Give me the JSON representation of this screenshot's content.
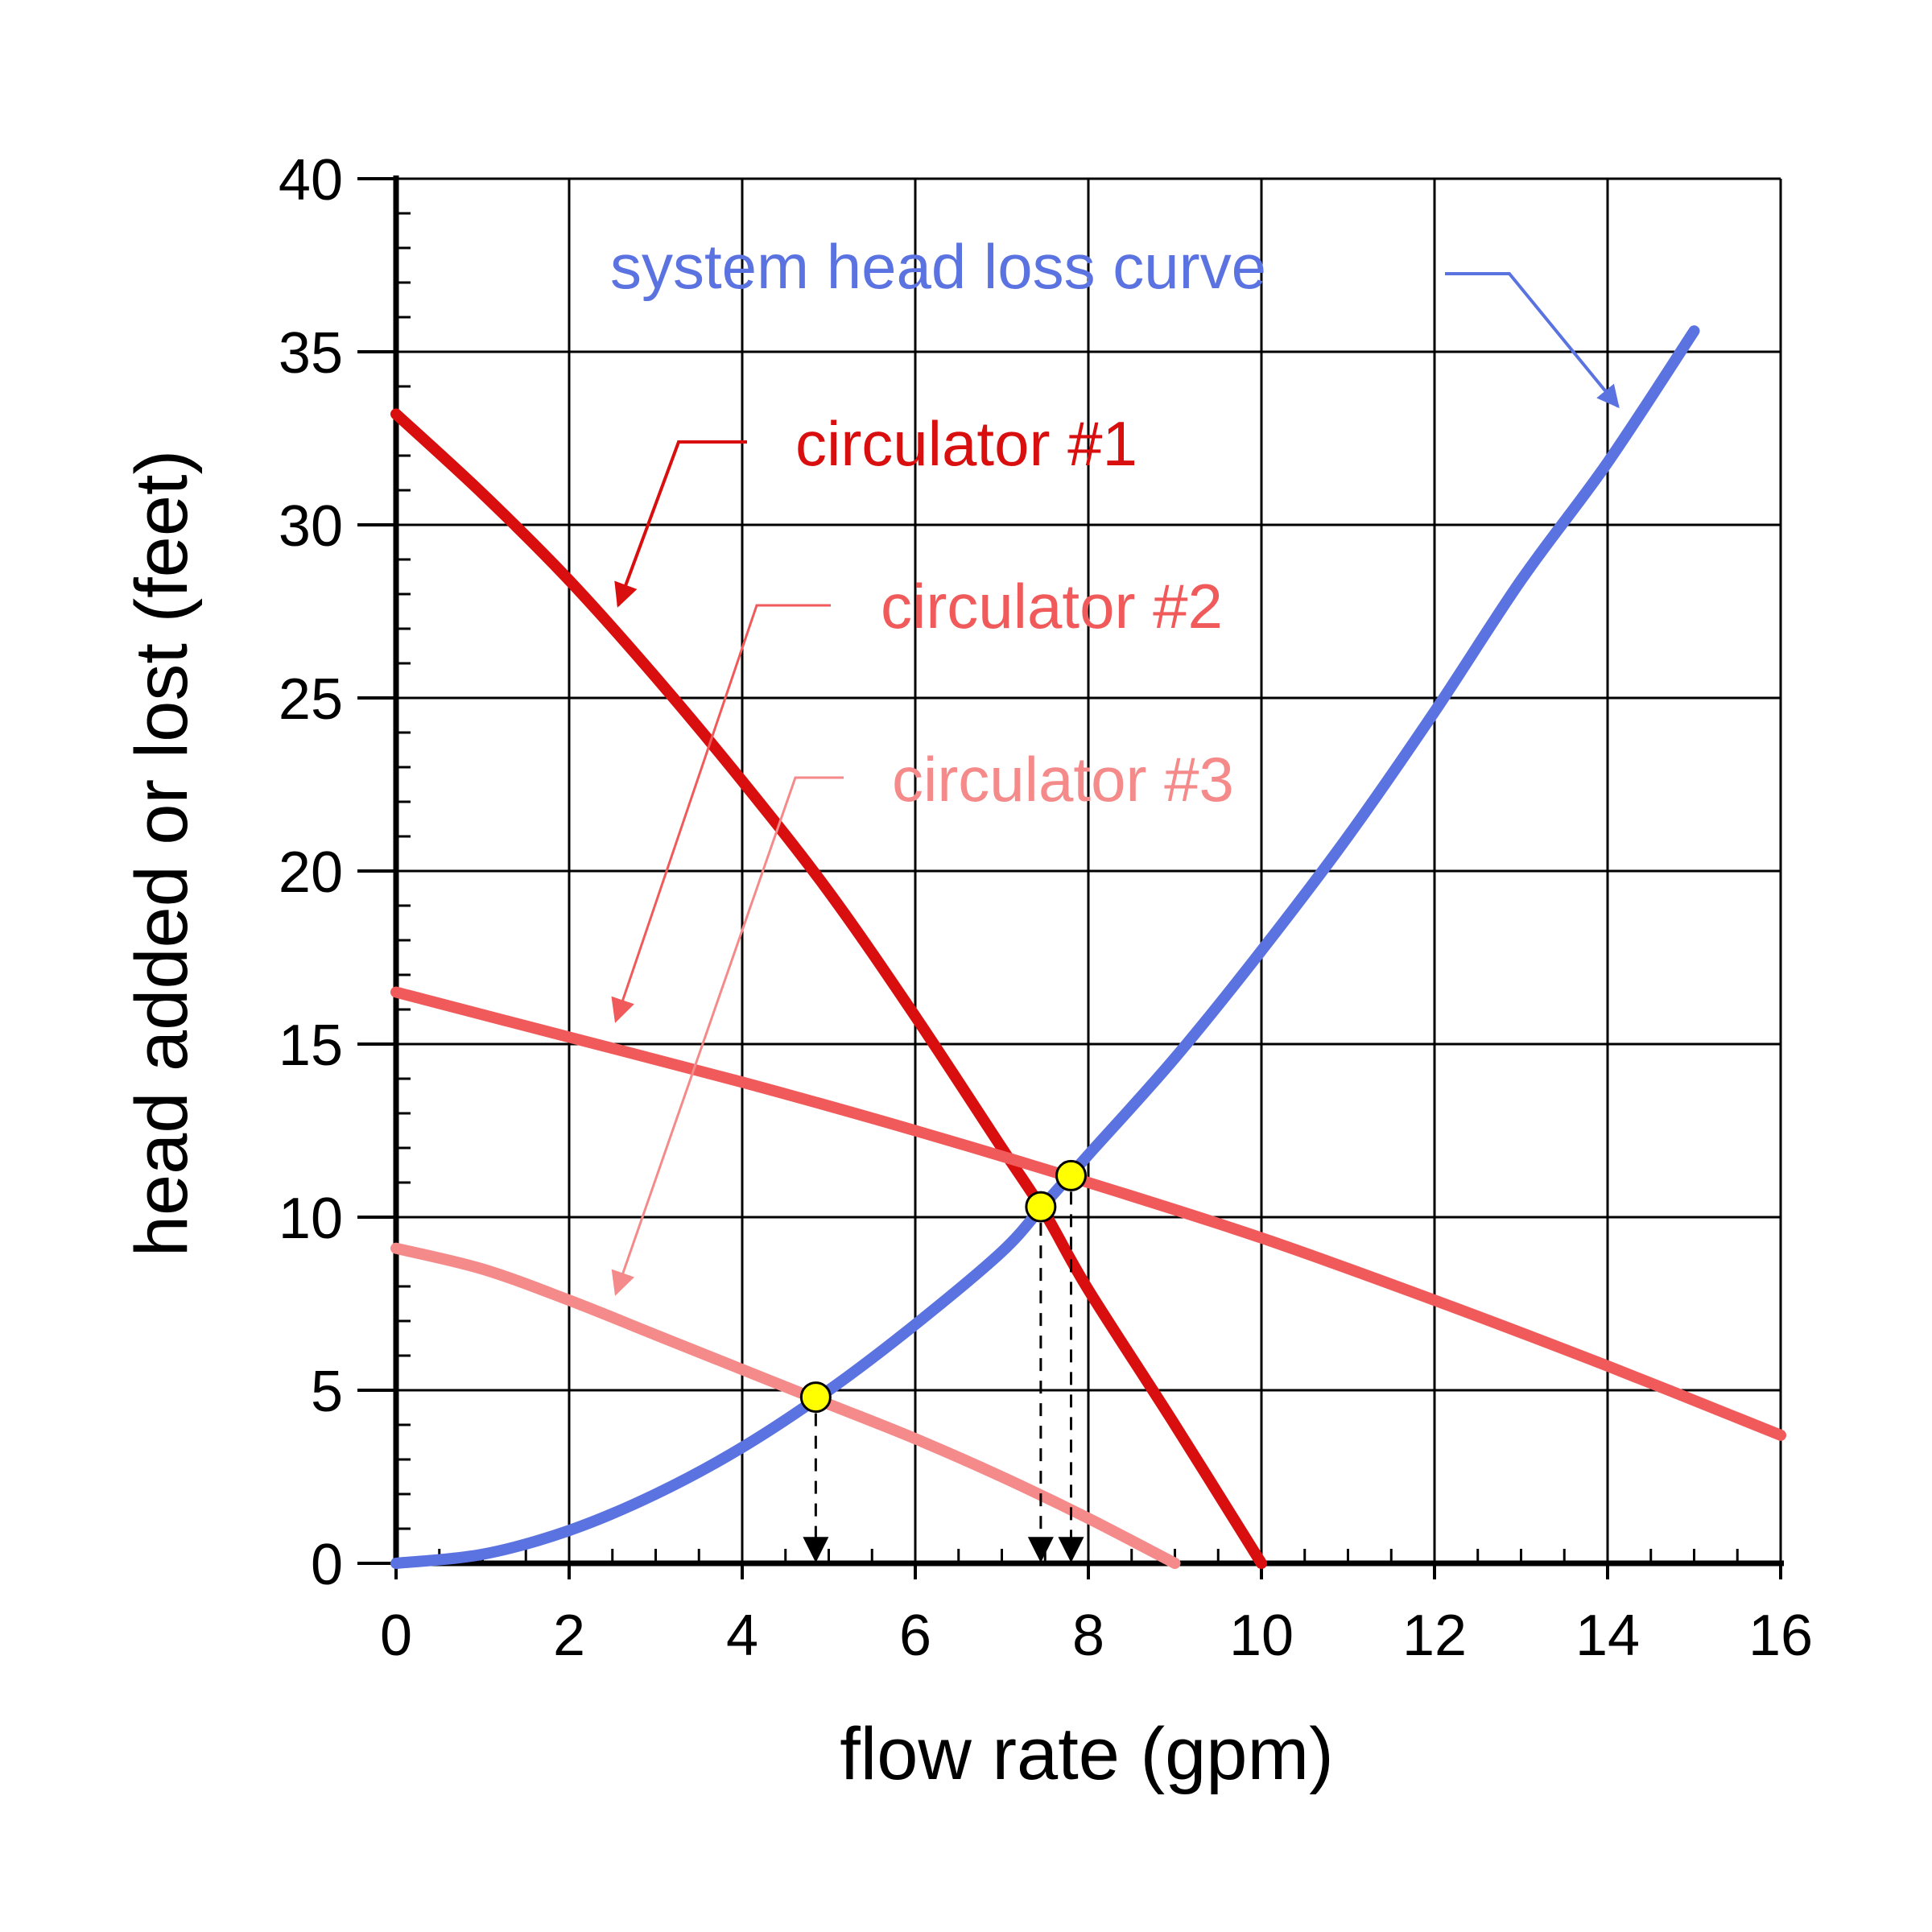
{
  "chart_data": {
    "type": "line",
    "xlabel": "flow rate (gpm)",
    "ylabel": "head added or lost (feet)",
    "xlim": [
      0,
      16
    ],
    "ylim": [
      0,
      40
    ],
    "xticks": [
      0,
      2,
      4,
      6,
      8,
      10,
      12,
      14,
      16
    ],
    "yticks": [
      0,
      5,
      10,
      15,
      20,
      25,
      30,
      35,
      40
    ],
    "grid": true,
    "series": [
      {
        "name": "system head loss curve",
        "color": "#5b73e0",
        "x": [
          0,
          1,
          2,
          3,
          4,
          5,
          6,
          7,
          7.5,
          8,
          9,
          10,
          11,
          12,
          13,
          14,
          15
        ],
        "y": [
          0,
          0.26,
          0.95,
          2.0,
          3.35,
          5.0,
          6.9,
          9.0,
          10.4,
          11.8,
          14.6,
          17.7,
          21.0,
          24.6,
          28.4,
          31.8,
          35.6
        ]
      },
      {
        "name": "circulator #1",
        "color": "#d90f0f",
        "x": [
          0,
          1,
          2,
          3,
          4,
          5,
          6,
          7,
          7.5,
          8,
          9,
          10
        ],
        "y": [
          33.2,
          30.9,
          28.4,
          25.6,
          22.6,
          19.4,
          15.8,
          12.0,
          10.1,
          7.9,
          4.0,
          0
        ]
      },
      {
        "name": "circulator #2",
        "color": "#f05a5a",
        "x": [
          0,
          2,
          4,
          6,
          8,
          10,
          12,
          14,
          16
        ],
        "y": [
          16.5,
          15.2,
          13.9,
          12.5,
          11.0,
          9.4,
          7.6,
          5.7,
          3.7
        ]
      },
      {
        "name": "circulator #3",
        "color": "#f58a8a",
        "x": [
          0,
          1,
          2,
          3,
          4,
          5,
          6,
          7,
          8,
          9
        ],
        "y": [
          9.1,
          8.5,
          7.6,
          6.6,
          5.6,
          4.6,
          3.6,
          2.5,
          1.3,
          0
        ]
      }
    ],
    "operating_points": [
      {
        "x": 4.85,
        "y": 4.8
      },
      {
        "x": 7.45,
        "y": 10.3
      },
      {
        "x": 7.8,
        "y": 11.2
      }
    ],
    "point_color": "#ffff00"
  }
}
